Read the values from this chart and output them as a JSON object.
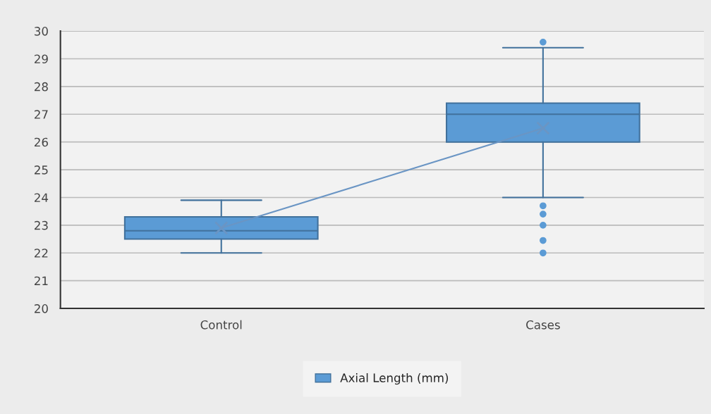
{
  "chart_data": {
    "type": "box",
    "categories": [
      "Control",
      "Cases"
    ],
    "series": [
      {
        "name": "Axial Length (mm)",
        "color": "#5b9bd5",
        "boxes": [
          {
            "low": 22.0,
            "q1": 22.5,
            "median": 22.8,
            "q3": 23.3,
            "high": 23.9
          },
          {
            "low": 24.0,
            "q1": 26.0,
            "median": 27.0,
            "q3": 27.4,
            "high": 29.4,
            "outliers": [
              29.6,
              23.7,
              23.4,
              23.0,
              22.45,
              22.0
            ]
          }
        ]
      },
      {
        "type": "line",
        "color": "#6a95c4",
        "values": [
          22.9,
          26.5
        ],
        "marker": "cross"
      }
    ],
    "ylim": [
      20,
      30
    ],
    "yticks": [
      20,
      21,
      22,
      23,
      24,
      25,
      26,
      27,
      28,
      29,
      30
    ],
    "grid": "y",
    "legend": "bottom"
  }
}
